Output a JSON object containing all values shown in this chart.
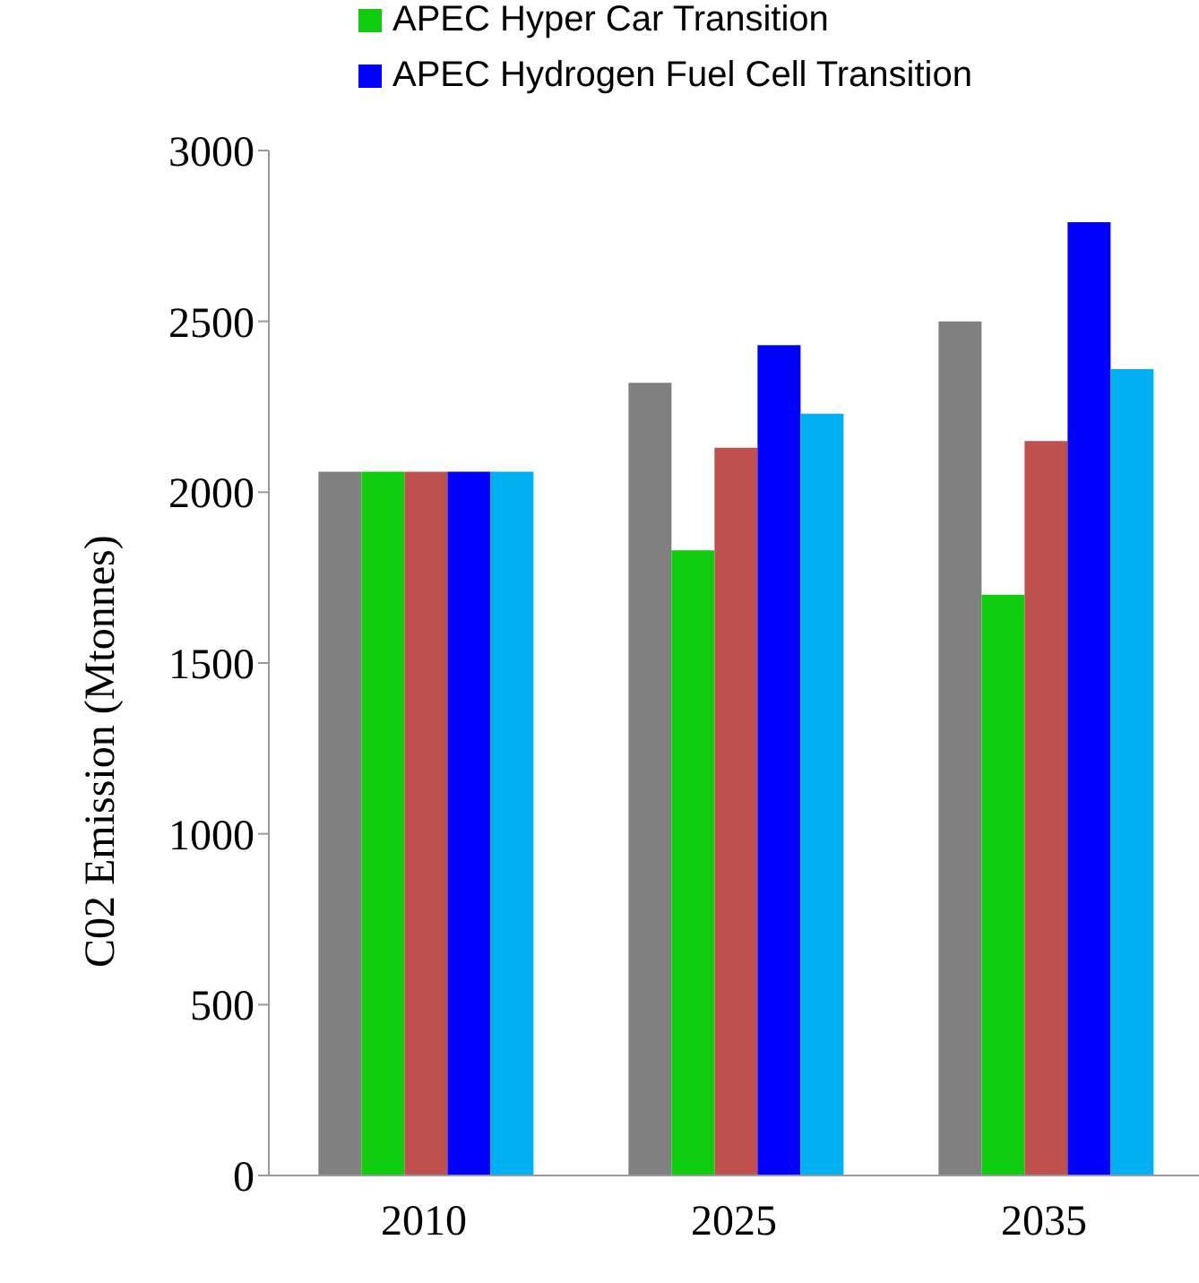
{
  "chart_data": {
    "type": "bar",
    "ylabel": "C02 Emission (Mtonnes)",
    "categories": [
      "2010",
      "2025",
      "2035"
    ],
    "series": [
      {
        "color": "#808080",
        "values": [
          2060,
          2320,
          2500
        ]
      },
      {
        "name": "APEC Hyper Car Transition",
        "color": "#0fcc0f",
        "values": [
          2060,
          1830,
          1700
        ]
      },
      {
        "color": "#c0504d",
        "values": [
          2060,
          2130,
          2150
        ]
      },
      {
        "name": "APEC Hydrogen Fuel Cell Transition",
        "color": "#0000ff",
        "values": [
          2060,
          2430,
          2790
        ]
      },
      {
        "color": "#00b0f0",
        "values": [
          2060,
          2230,
          2360
        ]
      }
    ],
    "ylim": [
      0,
      3000
    ],
    "yticks": [
      0,
      500,
      1000,
      1500,
      2000,
      2500,
      3000
    ],
    "grid": false,
    "legend": "top"
  }
}
